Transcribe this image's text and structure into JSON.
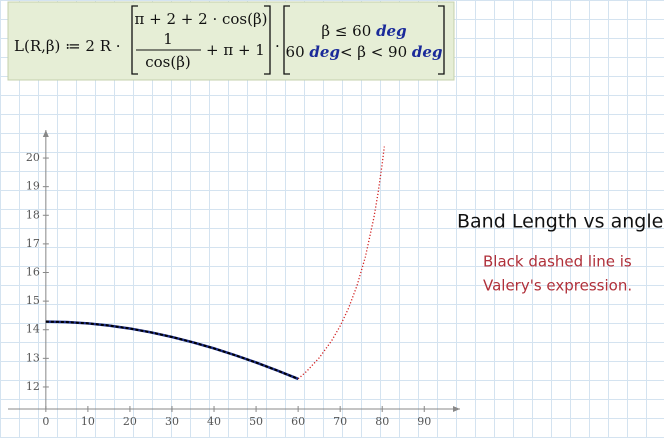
{
  "formula": {
    "lhs": "L(R,β) ≔ 2 R ·",
    "piece1": "π + 2 + 2 · cos(β)",
    "numerator": "1",
    "denominator": "cos(β)",
    "piece2_rest": "+ π + 1",
    "times": "·",
    "cond1_expr": "β ≤ 60",
    "cond1_unit": "deg",
    "cond2_lower": "60",
    "cond2_lower_unit": "deg",
    "cond2_mid": "< β < 90",
    "cond2_upper_unit": "deg"
  },
  "chart_data": {
    "type": "line",
    "title": "Band Length vs angle",
    "annotations": [
      "Black dashed line is",
      "Valery's expression."
    ],
    "xlim": [
      -9,
      98.5
    ],
    "ylim": [
      11.23,
      20.98
    ],
    "xticks": [
      0,
      10,
      20,
      30,
      40,
      50,
      60,
      70,
      80,
      90
    ],
    "yticks": [
      12,
      13,
      14,
      15,
      16,
      17,
      18,
      19,
      20
    ],
    "series": [
      {
        "color": "#d02020",
        "style": "dotted",
        "x": [
          60,
          62,
          65,
          68,
          70,
          72,
          74,
          76,
          78,
          79,
          80,
          80.5
        ],
        "values": [
          12.283,
          12.543,
          13.016,
          13.622,
          14.131,
          14.755,
          15.539,
          16.55,
          17.902,
          18.765,
          19.801,
          20.401
        ]
      },
      {
        "color": "#1f2f8a",
        "style": "solid",
        "x": [
          0,
          5,
          10,
          15,
          20,
          25,
          30,
          35,
          40,
          45,
          50,
          55,
          60
        ],
        "values": [
          14.283,
          14.268,
          14.222,
          14.147,
          14.042,
          13.908,
          13.747,
          13.56,
          13.347,
          13.111,
          12.854,
          12.577,
          12.283
        ]
      },
      {
        "color": "#000000",
        "style": "dashed",
        "x": [
          0,
          5,
          10,
          15,
          20,
          25,
          30,
          35,
          40,
          45,
          50,
          55,
          60
        ],
        "values": [
          14.283,
          14.268,
          14.222,
          14.147,
          14.042,
          13.908,
          13.747,
          13.56,
          13.347,
          13.111,
          12.854,
          12.577,
          12.283
        ]
      }
    ]
  }
}
